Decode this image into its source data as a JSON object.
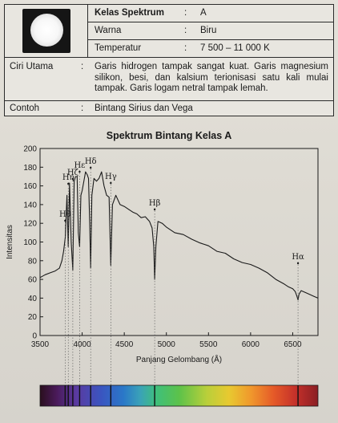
{
  "info": {
    "rows": [
      {
        "key": "Kelas Spektrum",
        "sep": ":",
        "value": "A"
      },
      {
        "key": "Warna",
        "sep": ":",
        "value": "Biru"
      },
      {
        "key": "Temperatur",
        "sep": ":",
        "value": "7 500 – 11 000 K"
      }
    ],
    "ciri": {
      "key": "Ciri Utama",
      "sep": ":",
      "value": "Garis hidrogen tampak sangat kuat. Garis magnesium silikon, besi, dan kalsium terionisasi satu kali mulai tampak. Garis logam netral tampak lemah."
    },
    "contoh": {
      "key": "Contoh",
      "sep": ":",
      "value": "Bintang Sirius dan Vega"
    }
  },
  "chart_data": {
    "type": "line",
    "title": "Spektrum Bintang Kelas A",
    "xlabel": "Panjang Gelombang (Å)",
    "ylabel": "Intensitas",
    "xlim": [
      3500,
      6800
    ],
    "ylim": [
      0,
      200
    ],
    "x_ticks": [
      3500,
      4000,
      4500,
      5000,
      5500,
      6000,
      6500
    ],
    "y_ticks": [
      0,
      20,
      40,
      60,
      80,
      100,
      120,
      140,
      160,
      180,
      200
    ],
    "grid": false,
    "series": [
      {
        "x": [
          3500,
          3560,
          3620,
          3680,
          3730,
          3760,
          3780,
          3800,
          3820,
          3835,
          3850,
          3870,
          3889,
          3905,
          3920,
          3940,
          3955,
          3970,
          3985,
          4000,
          4020,
          4040,
          4060,
          4075,
          4090,
          4101,
          4115,
          4140,
          4170,
          4200,
          4230,
          4260,
          4290,
          4320,
          4340,
          4360,
          4400,
          4450,
          4500,
          4550,
          4600,
          4650,
          4700,
          4750,
          4800,
          4830,
          4850,
          4861,
          4875,
          4900,
          4950,
          5000,
          5100,
          5200,
          5300,
          5400,
          5500,
          5600,
          5700,
          5800,
          5900,
          6000,
          6100,
          6200,
          6300,
          6400,
          6450,
          6500,
          6530,
          6550,
          6563,
          6575,
          6600,
          6650,
          6700,
          6750,
          6800
        ],
        "y": [
          62,
          65,
          67,
          69,
          72,
          80,
          90,
          105,
          150,
          95,
          163,
          100,
          70,
          165,
          170,
          170,
          110,
          95,
          150,
          155,
          165,
          175,
          172,
          168,
          120,
          72,
          150,
          168,
          165,
          168,
          175,
          160,
          150,
          148,
          75,
          140,
          150,
          140,
          138,
          135,
          132,
          130,
          126,
          127,
          122,
          115,
          95,
          60,
          95,
          122,
          120,
          116,
          110,
          108,
          103,
          99,
          96,
          90,
          88,
          82,
          78,
          76,
          72,
          67,
          60,
          55,
          52,
          50,
          47,
          42,
          38,
          44,
          48,
          46,
          44,
          42,
          40
        ]
      }
    ],
    "line_labels": [
      {
        "label": "Hθ",
        "x": 3798
      },
      {
        "label": "Hη",
        "x": 3835
      },
      {
        "label": "Hζ",
        "x": 3889
      },
      {
        "label": "Hε",
        "x": 3970
      },
      {
        "label": "Hδ",
        "x": 4101
      },
      {
        "label": "Hγ",
        "x": 4340
      },
      {
        "label": "Hβ",
        "x": 4861
      },
      {
        "label": "Hα",
        "x": 6563
      }
    ],
    "spectrum_strip": true
  }
}
